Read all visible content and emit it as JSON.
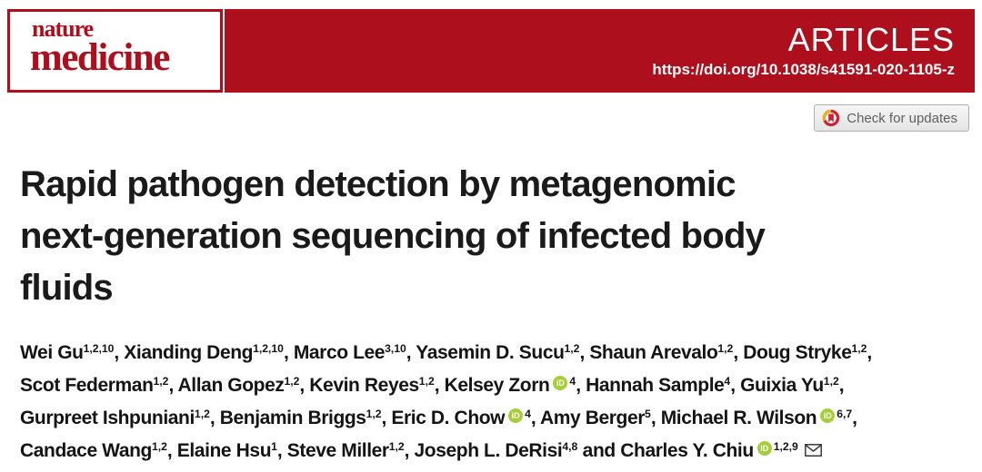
{
  "colors": {
    "brand_red": "#ad0f1c",
    "orcid_green": "#a6ce39",
    "title_text": "#1a1a1a",
    "author_text": "#141414",
    "badge_text": "#5f5f5f",
    "crossmark_red": "#cf2233",
    "crossmark_yellow": "#efad1d"
  },
  "logo": {
    "line1": "nature",
    "line2": "medicine"
  },
  "banner": {
    "section_label": "ARTICLES",
    "doi": "https://doi.org/10.1038/s41591-020-1105-z"
  },
  "badge": {
    "label": "Check for updates"
  },
  "article": {
    "title": "Rapid pathogen detection by metagenomic next-generation sequencing of infected body fluids",
    "title_lines": [
      "Rapid pathogen detection by metagenomic",
      "next-generation sequencing of infected body",
      "fluids"
    ]
  },
  "icons": {
    "orcid_label": "iD",
    "orcid_name": "orcid-icon",
    "email_name": "envelope-icon",
    "crossmark_name": "crossmark-icon"
  },
  "authors": {
    "lines": [
      [
        {
          "name": "Wei Gu",
          "sup": "1,2,10",
          "orcid": false,
          "email": false,
          "sep": ", "
        },
        {
          "name": "Xianding Deng",
          "sup": "1,2,10",
          "orcid": false,
          "email": false,
          "sep": ", "
        },
        {
          "name": "Marco Lee",
          "sup": "3,10",
          "orcid": false,
          "email": false,
          "sep": ", "
        },
        {
          "name": "Yasemin D. Sucu",
          "sup": "1,2",
          "orcid": false,
          "email": false,
          "sep": ", "
        },
        {
          "name": "Shaun Arevalo",
          "sup": "1,2",
          "orcid": false,
          "email": false,
          "sep": ", "
        },
        {
          "name": "Doug Stryke",
          "sup": "1,2",
          "orcid": false,
          "email": false,
          "sep": ","
        }
      ],
      [
        {
          "name": "Scot Federman",
          "sup": "1,2",
          "orcid": false,
          "email": false,
          "sep": ", "
        },
        {
          "name": "Allan Gopez",
          "sup": "1,2",
          "orcid": false,
          "email": false,
          "sep": ", "
        },
        {
          "name": "Kevin Reyes",
          "sup": "1,2",
          "orcid": false,
          "email": false,
          "sep": ", "
        },
        {
          "name": "Kelsey Zorn",
          "sup": "4",
          "orcid": true,
          "email": false,
          "sep": ", "
        },
        {
          "name": "Hannah Sample",
          "sup": "4",
          "orcid": false,
          "email": false,
          "sep": ", "
        },
        {
          "name": "Guixia Yu",
          "sup": "1,2",
          "orcid": false,
          "email": false,
          "sep": ","
        }
      ],
      [
        {
          "name": "Gurpreet Ishpuniani",
          "sup": "1,2",
          "orcid": false,
          "email": false,
          "sep": ", "
        },
        {
          "name": "Benjamin Briggs",
          "sup": "1,2",
          "orcid": false,
          "email": false,
          "sep": ", "
        },
        {
          "name": "Eric D. Chow",
          "sup": "4",
          "orcid": true,
          "email": false,
          "sep": ", "
        },
        {
          "name": "Amy Berger",
          "sup": "5",
          "orcid": false,
          "email": false,
          "sep": ", "
        },
        {
          "name": "Michael R. Wilson",
          "sup": "6,7",
          "orcid": true,
          "email": false,
          "sep": ","
        }
      ],
      [
        {
          "name": "Candace Wang",
          "sup": "1,2",
          "orcid": false,
          "email": false,
          "sep": ", "
        },
        {
          "name": "Elaine Hsu",
          "sup": "1",
          "orcid": false,
          "email": false,
          "sep": ", "
        },
        {
          "name": "Steve Miller",
          "sup": "1,2",
          "orcid": false,
          "email": false,
          "sep": ", "
        },
        {
          "name": "Joseph L. DeRisi",
          "sup": "4,8",
          "orcid": false,
          "email": false,
          "sep": " and "
        },
        {
          "name": "Charles Y. Chiu",
          "sup": "1,2,9",
          "orcid": true,
          "email": true,
          "sep": ""
        }
      ]
    ]
  }
}
